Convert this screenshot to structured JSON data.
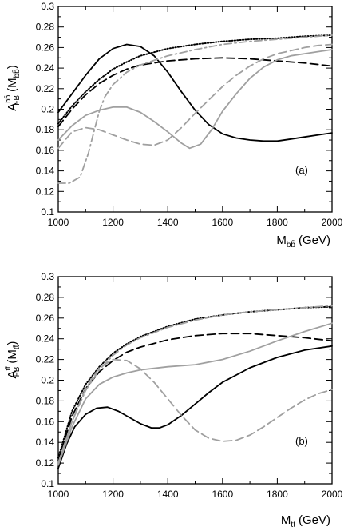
{
  "chart_data": [
    {
      "type": "line",
      "panel_label": "(a)",
      "xlabel": "M(GeV)",
      "xlabel_parts": {
        "main": "M",
        "sub": "bb̄",
        "unit": "(GeV)"
      },
      "ylabel": "A_FB^bb̄ (M_bb̄)",
      "ylabel_parts": {
        "main": "A",
        "sub": "FB",
        "sup": "bb̄",
        "arg_main": "(M",
        "arg_sub": "bb̄",
        "arg_close": ")"
      },
      "xlim": [
        1000,
        2000
      ],
      "ylim": [
        0.1,
        0.3
      ],
      "xticks": [
        "1000",
        "1200",
        "1400",
        "1600",
        "1800",
        "2000"
      ],
      "yticks": [
        "0.1",
        "0.12",
        "0.14",
        "0.16",
        "0.18",
        "0.2",
        "0.22",
        "0.24",
        "0.26",
        "0.28",
        "0.3"
      ],
      "series": [
        {
          "style": "solid",
          "color": "#000000",
          "x": [
            1000,
            1050,
            1100,
            1150,
            1200,
            1250,
            1300,
            1350,
            1400,
            1450,
            1500,
            1550,
            1600,
            1650,
            1700,
            1750,
            1800,
            1850,
            1900,
            1950,
            2000
          ],
          "y": [
            0.197,
            0.215,
            0.233,
            0.249,
            0.259,
            0.263,
            0.261,
            0.252,
            0.236,
            0.217,
            0.199,
            0.185,
            0.176,
            0.172,
            0.17,
            0.169,
            0.169,
            0.171,
            0.173,
            0.175,
            0.177
          ]
        },
        {
          "style": "dotted",
          "color": "#000000",
          "x": [
            1000,
            1050,
            1100,
            1150,
            1200,
            1250,
            1300,
            1400,
            1500,
            1600,
            1700,
            1800,
            1900,
            2000
          ],
          "y": [
            0.186,
            0.203,
            0.217,
            0.229,
            0.239,
            0.246,
            0.252,
            0.259,
            0.263,
            0.266,
            0.268,
            0.269,
            0.271,
            0.272
          ]
        },
        {
          "style": "dashed",
          "color": "#000000",
          "x": [
            1000,
            1050,
            1100,
            1150,
            1200,
            1250,
            1300,
            1400,
            1500,
            1600,
            1700,
            1800,
            1900,
            2000
          ],
          "y": [
            0.183,
            0.2,
            0.214,
            0.225,
            0.233,
            0.239,
            0.243,
            0.247,
            0.249,
            0.25,
            0.249,
            0.247,
            0.245,
            0.242
          ]
        },
        {
          "style": "solid",
          "color": "#a0a0a0",
          "x": [
            1000,
            1050,
            1100,
            1150,
            1200,
            1250,
            1300,
            1350,
            1400,
            1450,
            1480,
            1520,
            1560,
            1600,
            1650,
            1700,
            1750,
            1800,
            1850,
            1900,
            1950,
            2000
          ],
          "y": [
            0.17,
            0.184,
            0.194,
            0.199,
            0.202,
            0.202,
            0.197,
            0.188,
            0.178,
            0.167,
            0.162,
            0.166,
            0.18,
            0.198,
            0.215,
            0.23,
            0.241,
            0.248,
            0.252,
            0.254,
            0.256,
            0.258
          ]
        },
        {
          "style": "dashed",
          "color": "#a0a0a0",
          "x": [
            1000,
            1050,
            1100,
            1150,
            1200,
            1250,
            1300,
            1350,
            1400,
            1450,
            1500,
            1550,
            1600,
            1650,
            1700,
            1750,
            1800,
            1850,
            1900,
            1950,
            2000
          ],
          "y": [
            0.162,
            0.178,
            0.182,
            0.18,
            0.175,
            0.17,
            0.166,
            0.165,
            0.17,
            0.182,
            0.196,
            0.209,
            0.222,
            0.233,
            0.242,
            0.249,
            0.254,
            0.257,
            0.26,
            0.262,
            0.263
          ]
        },
        {
          "style": "dashdot",
          "color": "#a0a0a0",
          "x": [
            1000,
            1040,
            1080,
            1110,
            1130,
            1150,
            1170,
            1200,
            1250,
            1300,
            1400,
            1500,
            1600,
            1700,
            1800,
            1900,
            2000
          ],
          "y": [
            0.128,
            0.128,
            0.134,
            0.157,
            0.178,
            0.198,
            0.212,
            0.224,
            0.236,
            0.243,
            0.252,
            0.258,
            0.263,
            0.266,
            0.268,
            0.27,
            0.272
          ]
        }
      ]
    },
    {
      "type": "line",
      "panel_label": "(b)",
      "xlabel": "M(GeV)",
      "xlabel_parts": {
        "main": "M",
        "sub": "tt̄",
        "unit": "(GeV)"
      },
      "ylabel": "A_FB^tt̄ (M_tt̄)",
      "ylabel_parts": {
        "main": "A",
        "sub": "FB",
        "sup": "tt̄",
        "arg_main": "(M",
        "arg_sub": "tt̄",
        "arg_close": ")"
      },
      "xlim": [
        1000,
        2000
      ],
      "ylim": [
        0.1,
        0.3
      ],
      "xticks": [
        "1000",
        "1200",
        "1400",
        "1600",
        "1800",
        "2000"
      ],
      "yticks": [
        "0.1",
        "0.12",
        "0.14",
        "0.16",
        "0.18",
        "0.2",
        "0.22",
        "0.24",
        "0.26",
        "0.28",
        "0.3"
      ],
      "series": [
        {
          "style": "solid",
          "color": "#000000",
          "x": [
            1000,
            1030,
            1060,
            1100,
            1140,
            1180,
            1220,
            1260,
            1300,
            1340,
            1370,
            1400,
            1450,
            1500,
            1550,
            1600,
            1700,
            1800,
            1900,
            2000
          ],
          "y": [
            0.115,
            0.138,
            0.155,
            0.167,
            0.173,
            0.174,
            0.17,
            0.164,
            0.158,
            0.154,
            0.154,
            0.157,
            0.166,
            0.177,
            0.188,
            0.198,
            0.212,
            0.222,
            0.229,
            0.233
          ]
        },
        {
          "style": "dotted",
          "color": "#000000",
          "x": [
            1000,
            1050,
            1100,
            1150,
            1200,
            1250,
            1300,
            1400,
            1500,
            1600,
            1700,
            1800,
            1900,
            2000
          ],
          "y": [
            0.125,
            0.17,
            0.196,
            0.213,
            0.226,
            0.235,
            0.242,
            0.252,
            0.259,
            0.263,
            0.266,
            0.268,
            0.27,
            0.271
          ]
        },
        {
          "style": "dashed",
          "color": "#000000",
          "x": [
            1000,
            1050,
            1100,
            1150,
            1200,
            1250,
            1300,
            1400,
            1500,
            1600,
            1700,
            1800,
            1900,
            2000
          ],
          "y": [
            0.122,
            0.165,
            0.192,
            0.208,
            0.219,
            0.227,
            0.232,
            0.239,
            0.243,
            0.245,
            0.245,
            0.243,
            0.241,
            0.238
          ]
        },
        {
          "style": "solid",
          "color": "#a0a0a0",
          "x": [
            1000,
            1050,
            1100,
            1150,
            1200,
            1250,
            1300,
            1400,
            1500,
            1600,
            1700,
            1800,
            1900,
            2000
          ],
          "y": [
            0.118,
            0.155,
            0.182,
            0.196,
            0.203,
            0.207,
            0.21,
            0.213,
            0.215,
            0.22,
            0.228,
            0.238,
            0.247,
            0.255
          ]
        },
        {
          "style": "dashed",
          "color": "#a0a0a0",
          "x": [
            1000,
            1050,
            1100,
            1150,
            1200,
            1250,
            1300,
            1350,
            1400,
            1450,
            1500,
            1550,
            1600,
            1650,
            1700,
            1750,
            1800,
            1850,
            1900,
            1950,
            2000
          ],
          "y": [
            0.12,
            0.16,
            0.192,
            0.212,
            0.22,
            0.219,
            0.211,
            0.198,
            0.182,
            0.166,
            0.152,
            0.144,
            0.141,
            0.142,
            0.147,
            0.155,
            0.164,
            0.173,
            0.181,
            0.187,
            0.191
          ]
        },
        {
          "style": "dashdot",
          "color": "#a0a0a0",
          "x": [
            1000,
            1050,
            1100,
            1150,
            1200,
            1250,
            1300,
            1400,
            1500,
            1600,
            1700,
            1800,
            1900,
            2000
          ],
          "y": [
            0.12,
            0.16,
            0.19,
            0.21,
            0.224,
            0.234,
            0.241,
            0.251,
            0.258,
            0.263,
            0.266,
            0.268,
            0.27,
            0.272
          ]
        }
      ]
    }
  ]
}
